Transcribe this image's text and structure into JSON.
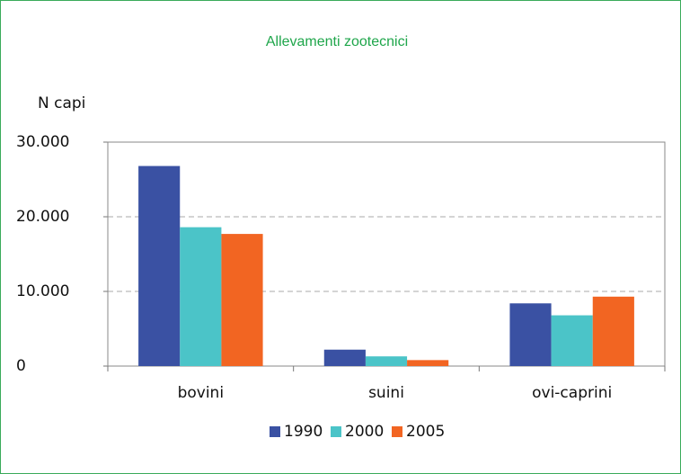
{
  "chart_data": {
    "type": "bar",
    "title": "Allevamenti zootecnici",
    "y_label": "N capi",
    "categories": [
      "bovini",
      "suini",
      "ovi-caprini"
    ],
    "series": [
      {
        "name": "1990",
        "color": "#3a51a3",
        "values": [
          26800,
          2200,
          8400
        ]
      },
      {
        "name": "2000",
        "color": "#4bc4c8",
        "values": [
          18600,
          1300,
          6800
        ]
      },
      {
        "name": "2005",
        "color": "#f26522",
        "values": [
          17700,
          800,
          9300
        ]
      }
    ],
    "ylim": [
      0,
      30000
    ],
    "yticks": [
      0,
      {
        "value": 10000,
        "label": "10.000"
      },
      {
        "value": 20000,
        "label": "20.000"
      },
      {
        "value": 30000,
        "label": "30.000"
      }
    ],
    "grid": true,
    "legend": "bottom"
  }
}
